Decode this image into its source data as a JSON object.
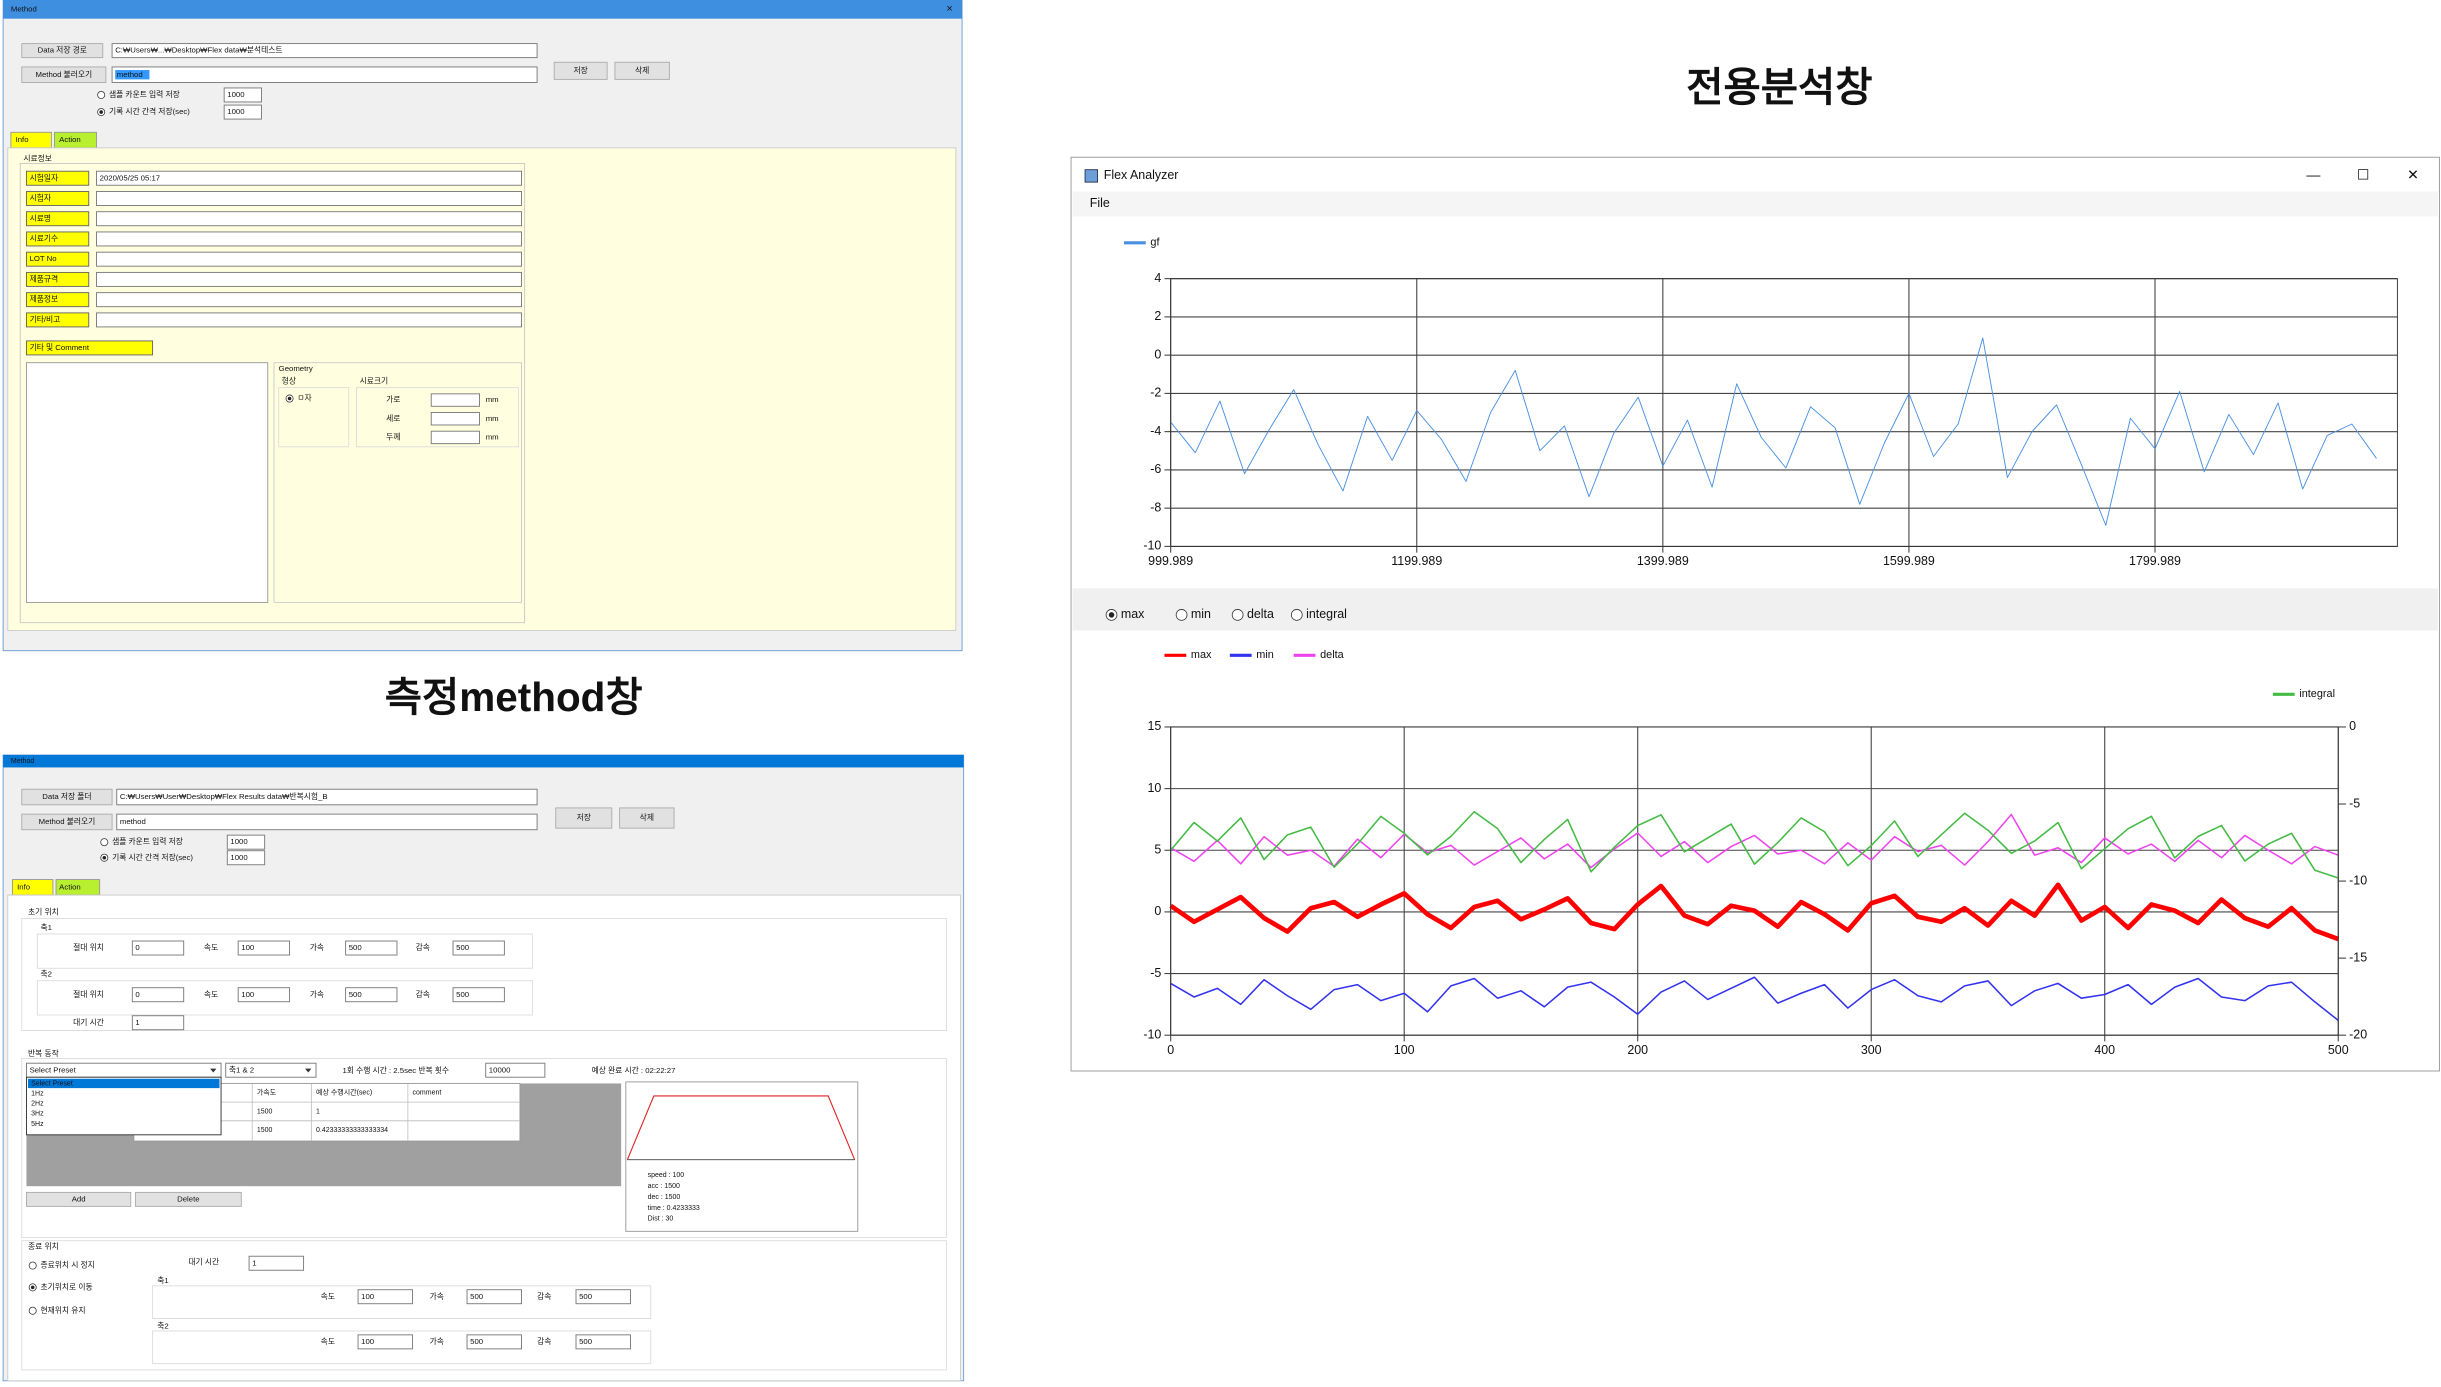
{
  "labels": {
    "method_caption": "측정method창",
    "analyzer_caption": "전용분석창"
  },
  "method_window_1": {
    "title": "Method",
    "close": "×",
    "path_button": "Data 저장 경로",
    "path": "C:₩Users₩...₩Desktop₩Flex data₩분석테스트",
    "method_button": "Method 불러오기",
    "method": "method",
    "save": "저장",
    "delete": "삭제",
    "radio_options": [
      "샘플 카운트 입력 저장",
      "기록 시간 간격 저장(sec)"
    ],
    "radio_values": [
      "1000",
      "1000"
    ],
    "tabs": [
      "Info",
      "Action"
    ],
    "group": "시료정보",
    "fields": [
      "시험일자",
      "시험자",
      "시료명",
      "시료기수",
      "LOT No",
      "제품규격",
      "제품정보",
      "기타/비고"
    ],
    "date": "2020/05/25 05:17",
    "comment_label": "기타 및 Comment",
    "geometry": "Geometry",
    "shape": "형상",
    "size": "시료크기",
    "shape_option": "ㅁ자",
    "dimensions": [
      "가로",
      "세로",
      "두께"
    ],
    "unit": "mm"
  },
  "method_window_2": {
    "title": "Method",
    "path_button": "Data 저장 폴더",
    "path": "C:₩Users₩User₩Desktop₩Flex Results data₩반복시험_B",
    "method_button": "Method 불러오기",
    "method": "method",
    "save": "저장",
    "delete": "삭제",
    "radio_options": [
      "샘플 카운트 입력 저장",
      "기록 시간 간격 저장(sec)"
    ],
    "radio_values": [
      "1000",
      "1000"
    ],
    "tabs": [
      "Info",
      "Action"
    ],
    "initial": {
      "title": "초기 위치",
      "labels": [
        "절대 위치",
        "속도",
        "가속",
        "감속"
      ],
      "axes": [
        {
          "name": "축1",
          "values": [
            "0",
            "100",
            "500",
            "500"
          ]
        },
        {
          "name": "축2",
          "values": [
            "0",
            "100",
            "500",
            "500"
          ]
        }
      ],
      "wait_label": "대기 시간",
      "wait": "1"
    },
    "repeat": {
      "title": "반복 동작",
      "preset": "Select Preset",
      "axis_select": "축1 & 2",
      "cycle_time": "1회 수행 시간 : 2.5sec  반복 횟수",
      "count": "10000",
      "finish": "예상 완료 시간 : 02:22:27",
      "preset_options": [
        "Select Preset",
        "1Hz",
        "2Hz",
        "3Hz",
        "5Hz"
      ],
      "columns": [
        "가속도",
        "예상 수행시간(sec)",
        "comment"
      ],
      "rows": [
        [
          "1500",
          "1"
        ],
        [
          "1500",
          "0.42333333333333334"
        ]
      ],
      "add": "Add",
      "delete": "Delete",
      "profile": [
        "speed : 100",
        "acc : 1500",
        "dec : 1500",
        "time : 0.4233333",
        "Dist : 30"
      ]
    },
    "final": {
      "title": "종료 위치",
      "options": [
        "종료위치 시 정지",
        "초기위치로 이동",
        "현재위치 유지"
      ],
      "wait_label": "대기 시간",
      "wait": "1",
      "labels": [
        "속도",
        "가속",
        "감속"
      ],
      "axes": [
        {
          "name": "축1",
          "values": [
            "100",
            "500",
            "500"
          ]
        },
        {
          "name": "축2",
          "values": [
            "100",
            "500",
            "500"
          ]
        }
      ]
    }
  },
  "analyzer": {
    "title": "Flex Analyzer",
    "controls": [
      "—",
      "☐",
      "✕"
    ],
    "menu": "File",
    "modes": [
      "max",
      "min",
      "delta",
      "integral"
    ],
    "selected_mode": 0
  },
  "chart_data": [
    {
      "type": "line",
      "grid": true,
      "xlim": [
        999.989,
        1997
      ],
      "ylim": [
        -10,
        4
      ],
      "xticks": [
        999.989,
        1199.989,
        1399.989,
        1599.989,
        1799.989
      ],
      "yticks": [
        -10,
        -8,
        -6,
        -4,
        -2,
        0,
        2,
        4
      ],
      "x": [
        1000,
        1020,
        1040,
        1060,
        1080,
        1100,
        1120,
        1140,
        1160,
        1180,
        1200,
        1220,
        1240,
        1260,
        1280,
        1300,
        1320,
        1340,
        1360,
        1380,
        1400,
        1420,
        1440,
        1460,
        1480,
        1500,
        1520,
        1540,
        1560,
        1580,
        1600,
        1620,
        1640,
        1660,
        1680,
        1700,
        1720,
        1740,
        1760,
        1780,
        1800,
        1820,
        1840,
        1860,
        1880,
        1900,
        1920,
        1940,
        1960,
        1980
      ],
      "series": [
        {
          "name": "gf",
          "color": "#4a90e2",
          "values": [
            -3.5,
            -5.1,
            -2.4,
            -6.2,
            -3.9,
            -1.8,
            -4.7,
            -7.1,
            -3.2,
            -5.5,
            -2.9,
            -4.4,
            -6.6,
            -3.0,
            -0.8,
            -5.0,
            -3.7,
            -7.4,
            -4.1,
            -2.2,
            -5.8,
            -3.4,
            -6.9,
            -1.5,
            -4.3,
            -5.9,
            -2.7,
            -3.8,
            -7.8,
            -4.6,
            -2.0,
            -5.3,
            -3.6,
            0.9,
            -6.4,
            -4.0,
            -2.6,
            -5.7,
            -8.9,
            -3.3,
            -4.9,
            -1.9,
            -6.1,
            -3.1,
            -5.2,
            -2.5,
            -7.0,
            -4.2,
            -3.6,
            -5.4
          ]
        }
      ]
    },
    {
      "type": "line",
      "grid": true,
      "xlim": [
        0,
        500
      ],
      "ylim": [
        -10,
        15
      ],
      "y2lim": [
        -20,
        0
      ],
      "xticks": [
        0,
        100,
        200,
        300,
        400,
        500
      ],
      "yticks": [
        -10,
        -5,
        0,
        5,
        10,
        15
      ],
      "y2ticks": [
        -20,
        -15,
        -10,
        -5,
        0
      ],
      "x": [
        0,
        10,
        20,
        30,
        40,
        50,
        60,
        70,
        80,
        90,
        100,
        110,
        120,
        130,
        140,
        150,
        160,
        170,
        180,
        190,
        200,
        210,
        220,
        230,
        240,
        250,
        260,
        270,
        280,
        290,
        300,
        310,
        320,
        330,
        340,
        350,
        360,
        370,
        380,
        390,
        400,
        410,
        420,
        430,
        440,
        450,
        460,
        470,
        480,
        490,
        500
      ],
      "series": [
        {
          "name": "max",
          "color": "#ff0000",
          "values": [
            0.5,
            -0.8,
            0.2,
            1.2,
            -0.5,
            -1.6,
            0.3,
            0.8,
            -0.4,
            0.6,
            1.5,
            -0.2,
            -1.3,
            0.4,
            0.9,
            -0.6,
            0.2,
            1.1,
            -0.9,
            -1.4,
            0.6,
            2.1,
            -0.3,
            -1.0,
            0.5,
            0.1,
            -1.2,
            0.8,
            -0.2,
            -1.5,
            0.7,
            1.3,
            -0.4,
            -0.8,
            0.3,
            -1.1,
            0.9,
            -0.3,
            2.2,
            -0.7,
            0.4,
            -1.3,
            0.6,
            0.1,
            -0.9,
            1.0,
            -0.5,
            -1.2,
            0.3,
            -1.5,
            -2.2
          ]
        },
        {
          "name": "min",
          "color": "#3333ee",
          "values": [
            -5.8,
            -6.9,
            -6.2,
            -7.5,
            -5.5,
            -6.8,
            -7.9,
            -6.3,
            -5.9,
            -7.2,
            -6.6,
            -8.1,
            -6.0,
            -5.4,
            -7.0,
            -6.4,
            -7.7,
            -6.1,
            -5.7,
            -6.9,
            -8.3,
            -6.5,
            -5.6,
            -7.1,
            -6.2,
            -5.3,
            -7.4,
            -6.6,
            -5.9,
            -7.8,
            -6.3,
            -5.5,
            -6.8,
            -7.3,
            -6.0,
            -5.6,
            -7.6,
            -6.4,
            -5.8,
            -7.0,
            -6.7,
            -5.9,
            -7.5,
            -6.1,
            -5.4,
            -6.9,
            -7.2,
            -6.0,
            -5.7,
            -7.3,
            -8.8
          ]
        },
        {
          "name": "delta",
          "color": "#ee44ee",
          "values": [
            5.2,
            4.1,
            5.8,
            3.9,
            6.1,
            4.6,
            5.0,
            3.7,
            5.9,
            4.4,
            6.3,
            4.8,
            5.4,
            3.8,
            4.9,
            6.0,
            4.3,
            5.5,
            3.6,
            5.1,
            6.4,
            4.5,
            5.7,
            4.0,
            5.3,
            6.2,
            4.7,
            5.0,
            3.9,
            5.6,
            4.2,
            6.1,
            4.9,
            5.4,
            3.8,
            5.7,
            7.9,
            4.6,
            5.2,
            4.0,
            6.0,
            4.7,
            5.5,
            4.1,
            5.8,
            4.4,
            6.2,
            5.0,
            3.9,
            5.3,
            4.6
          ]
        },
        {
          "name": "integral",
          "color": "#44bb44",
          "axis": "y2",
          "values": [
            -8.0,
            -6.2,
            -7.4,
            -5.9,
            -8.6,
            -7.0,
            -6.5,
            -9.1,
            -7.6,
            -5.8,
            -6.9,
            -8.3,
            -7.1,
            -5.5,
            -6.6,
            -8.8,
            -7.3,
            -6.0,
            -9.4,
            -7.8,
            -6.4,
            -5.7,
            -8.1,
            -7.2,
            -6.3,
            -8.9,
            -7.5,
            -5.9,
            -6.8,
            -9.0,
            -7.7,
            -6.1,
            -8.4,
            -7.0,
            -5.6,
            -6.7,
            -8.2,
            -7.4,
            -6.2,
            -9.2,
            -7.9,
            -6.6,
            -5.8,
            -8.5,
            -7.1,
            -6.4,
            -8.7,
            -7.6,
            -6.9,
            -9.3,
            -9.8
          ]
        }
      ]
    }
  ]
}
